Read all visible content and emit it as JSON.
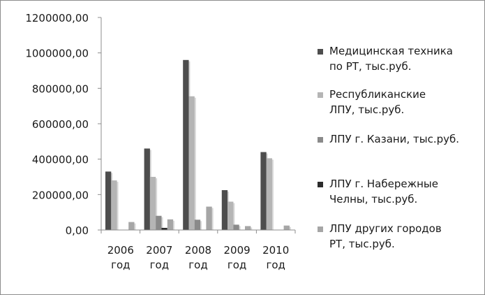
{
  "chart_data": {
    "type": "bar",
    "title": "",
    "xlabel": "",
    "ylabel": "",
    "ylim": [
      0,
      1200000
    ],
    "yticks": [
      "0,00",
      "200000,00",
      "400000,00",
      "600000,00",
      "800000,00",
      "1000000,00",
      "1200000,00"
    ],
    "ytick_values": [
      0,
      200000,
      400000,
      600000,
      800000,
      1000000,
      1200000
    ],
    "categories": [
      [
        "2006",
        "год"
      ],
      [
        "2007",
        "год"
      ],
      [
        "2008",
        "год"
      ],
      [
        "2009",
        "год"
      ],
      [
        "2010",
        "год"
      ]
    ],
    "legend_position": "right",
    "grid": false,
    "series": [
      {
        "name": [
          "Медицинская техника",
          "по РТ, тыс.руб."
        ],
        "color": "#4d4d4d",
        "values": [
          330000,
          460000,
          960000,
          225000,
          440000
        ]
      },
      {
        "name": [
          "Республиканские",
          "ЛПУ, тыс.руб."
        ],
        "color": "#b5b5b5",
        "values": [
          280000,
          300000,
          755000,
          160000,
          405000
        ]
      },
      {
        "name": [
          "ЛПУ г. Казани, тыс.руб."
        ],
        "color": "#8a8a8a",
        "values": [
          0,
          80000,
          58000,
          30000,
          0
        ]
      },
      {
        "name": [
          "ЛПУ г. Набережные",
          "Челны, тыс.руб."
        ],
        "color": "#2b2b2b",
        "values": [
          0,
          12000,
          0,
          0,
          0
        ]
      },
      {
        "name": [
          "ЛПУ других городов",
          "РТ, тыс.руб."
        ],
        "color": "#a6a6a6",
        "values": [
          45000,
          60000,
          132000,
          22000,
          25000
        ]
      }
    ]
  }
}
